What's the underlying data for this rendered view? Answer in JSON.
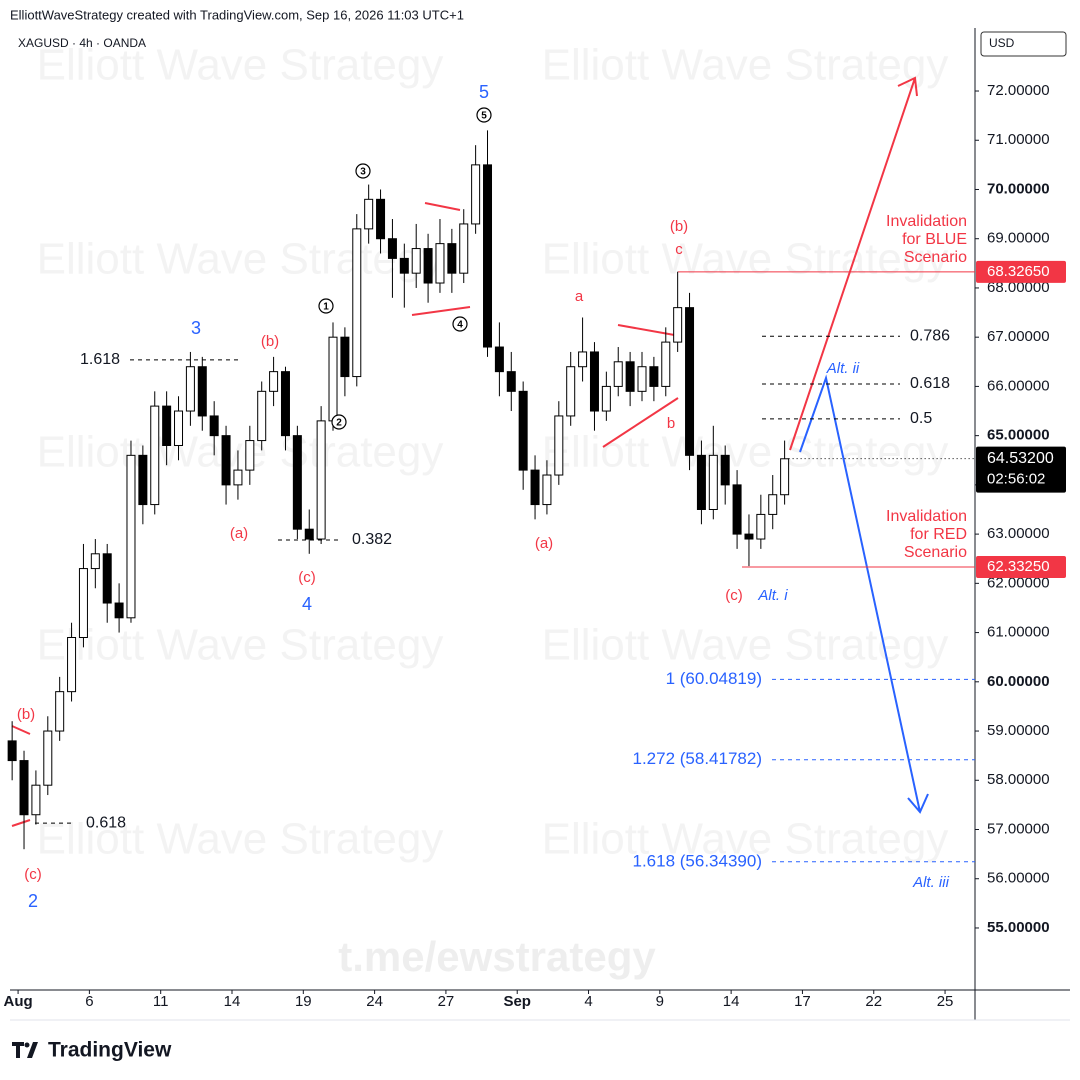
{
  "chart_data": {
    "type": "candlestick",
    "header": "ElliottWaveStrategy created with TradingView.com, Sep 16, 2026 11:03 UTC+1",
    "symbol": "XAGUSD · 4h · OANDA",
    "currency": "USD",
    "watermark": "Elliott Wave Strategy",
    "footer_url": "t.me/ewstrategy",
    "brand": "TradingView",
    "up_color": "#ffffff",
    "down_color": "#000000",
    "x": [
      -0.25,
      0.25,
      0.75,
      1.25,
      1.75,
      2.25,
      2.75,
      3.25,
      3.75,
      4.25,
      4.75,
      5.25,
      5.75,
      6.25,
      6.75,
      7.25,
      7.75,
      8.25,
      8.75,
      9.25,
      9.75,
      10.25,
      10.75,
      11.25,
      11.75,
      12.25,
      12.75,
      13.25,
      13.75,
      14.25,
      14.75,
      15.25,
      15.75,
      16.25,
      16.75,
      17.25,
      17.75,
      18.25,
      18.75,
      19.25,
      19.75,
      20.25,
      20.75,
      21.25,
      21.75,
      22.25,
      22.75,
      23.25,
      23.75,
      24.25,
      24.75,
      25.25,
      25.75,
      26.25,
      26.75,
      27.25,
      27.75,
      28.25,
      28.75,
      29.25,
      29.75,
      30.25,
      30.75,
      31.25,
      31.75,
      32.25
    ],
    "open": [
      58.8,
      58.4,
      57.3,
      57.9,
      59.0,
      59.8,
      60.9,
      62.3,
      62.6,
      61.6,
      61.3,
      64.6,
      63.6,
      65.6,
      64.8,
      65.5,
      66.4,
      65.4,
      65.0,
      64.0,
      64.3,
      64.9,
      65.9,
      66.3,
      65.0,
      63.1,
      62.9,
      65.3,
      67.0,
      66.2,
      69.2,
      69.8,
      69.0,
      68.6,
      68.3,
      68.8,
      68.1,
      68.9,
      68.3,
      69.3,
      70.5,
      66.8,
      66.3,
      65.9,
      64.3,
      63.6,
      64.2,
      65.4,
      66.4,
      66.7,
      65.5,
      66.0,
      66.5,
      65.9,
      66.4,
      66.0,
      66.9,
      67.6,
      64.6,
      63.5,
      64.6,
      64.0,
      63.0,
      62.9,
      63.4,
      63.8
    ],
    "high": [
      59.2,
      58.6,
      58.2,
      59.3,
      60.1,
      61.2,
      62.8,
      62.9,
      62.8,
      62.0,
      64.9,
      64.8,
      65.9,
      65.9,
      65.8,
      66.7,
      66.6,
      65.7,
      65.2,
      64.7,
      65.2,
      66.1,
      66.6,
      66.4,
      65.2,
      63.5,
      65.6,
      67.3,
      67.2,
      69.5,
      70.1,
      70.0,
      69.4,
      68.9,
      69.3,
      69.1,
      69.4,
      69.2,
      69.6,
      70.9,
      71.2,
      67.3,
      66.7,
      66.1,
      64.6,
      64.5,
      65.7,
      66.7,
      67.4,
      66.9,
      66.3,
      66.8,
      66.7,
      66.7,
      66.6,
      67.2,
      68.33,
      67.9,
      64.9,
      65.2,
      64.8,
      64.3,
      63.4,
      63.8,
      64.2,
      64.9
    ],
    "low": [
      58.0,
      56.6,
      57.1,
      57.7,
      58.8,
      59.6,
      60.7,
      61.9,
      61.2,
      61.0,
      61.2,
      63.2,
      63.4,
      64.4,
      64.5,
      65.2,
      65.1,
      64.6,
      63.6,
      63.7,
      64.0,
      64.7,
      65.6,
      64.7,
      62.9,
      62.6,
      62.8,
      65.1,
      65.8,
      66.0,
      68.9,
      68.7,
      67.8,
      67.6,
      68.0,
      67.7,
      67.9,
      67.9,
      68.1,
      69.1,
      66.6,
      65.8,
      65.5,
      63.9,
      63.3,
      63.4,
      64.0,
      65.2,
      66.1,
      65.1,
      65.3,
      65.8,
      65.6,
      65.7,
      65.7,
      65.8,
      66.7,
      64.3,
      63.2,
      63.3,
      63.6,
      62.7,
      62.35,
      62.7,
      63.1,
      63.6
    ],
    "close": [
      58.4,
      57.3,
      57.9,
      59.0,
      59.8,
      60.9,
      62.3,
      62.6,
      61.6,
      61.3,
      64.6,
      63.6,
      65.6,
      64.8,
      65.5,
      66.4,
      65.4,
      65.0,
      64.0,
      64.3,
      64.9,
      65.9,
      66.3,
      65.0,
      63.1,
      62.9,
      65.3,
      67.0,
      66.2,
      69.2,
      69.8,
      69.0,
      68.6,
      68.3,
      68.8,
      68.1,
      68.9,
      68.3,
      69.3,
      70.5,
      66.8,
      66.3,
      65.9,
      64.3,
      63.6,
      64.2,
      65.4,
      66.4,
      66.7,
      65.5,
      66.0,
      66.5,
      65.9,
      66.4,
      66.0,
      66.9,
      67.6,
      64.6,
      63.5,
      64.6,
      64.0,
      63.0,
      62.9,
      63.4,
      63.8,
      64.53
    ],
    "xlim": [
      -0.34,
      40.26
    ],
    "ylim": [
      53.74,
      73.28
    ],
    "xticks": [
      {
        "value": 0,
        "label": "Aug"
      },
      {
        "value": 3,
        "label": "6"
      },
      {
        "value": 6,
        "label": "11"
      },
      {
        "value": 9,
        "label": "14"
      },
      {
        "value": 12,
        "label": "19"
      },
      {
        "value": 15,
        "label": "24"
      },
      {
        "value": 18,
        "label": "27"
      },
      {
        "value": 21,
        "label": "Sep"
      },
      {
        "value": 24,
        "label": "4"
      },
      {
        "value": 27,
        "label": "9"
      },
      {
        "value": 30,
        "label": "14"
      },
      {
        "value": 33,
        "label": "17"
      },
      {
        "value": 36,
        "label": "22"
      },
      {
        "value": 39,
        "label": "25"
      }
    ],
    "yticks": [
      {
        "value": 55,
        "label": "55.00000"
      },
      {
        "value": 56,
        "label": "56.00000"
      },
      {
        "value": 57,
        "label": "57.00000"
      },
      {
        "value": 58,
        "label": "58.00000"
      },
      {
        "value": 59,
        "label": "59.00000"
      },
      {
        "value": 60,
        "label": "60.00000"
      },
      {
        "value": 61,
        "label": "61.00000"
      },
      {
        "value": 62,
        "label": "62.00000"
      },
      {
        "value": 63,
        "label": "63.00000"
      },
      {
        "value": 64,
        "label": "64.00000"
      },
      {
        "value": 65,
        "label": "65.00000"
      },
      {
        "value": 66,
        "label": "66.00000"
      },
      {
        "value": 67,
        "label": "67.00000"
      },
      {
        "value": 68,
        "label": "68.00000"
      },
      {
        "value": 69,
        "label": "69.00000"
      },
      {
        "value": 70,
        "label": "70.00000"
      },
      {
        "value": 71,
        "label": "71.00000"
      },
      {
        "value": 72,
        "label": "72.00000"
      }
    ],
    "levels": [
      {
        "value": 68.3265,
        "label": "68.32650",
        "color": "#f23645"
      },
      {
        "value": 62.3325,
        "label": "62.33250",
        "color": "#f23645"
      }
    ],
    "last_price": {
      "value": 64.532,
      "label": "64.53200",
      "countdown": "02:56:02"
    },
    "fib_levels": [
      {
        "label": "1.618",
        "value": 66.54
      },
      {
        "label": "0.382",
        "value": 62.88
      },
      {
        "label": "0.618",
        "value": 57.13
      },
      {
        "label": "0.786",
        "value": 67.02
      },
      {
        "label": "0.618",
        "value": 66.05
      },
      {
        "label": "0.5",
        "value": 65.34
      }
    ],
    "targets": [
      {
        "label": "1 (60.04819)",
        "value": 60.04819
      },
      {
        "label": "1.272 (58.41782)",
        "value": 58.41782
      },
      {
        "label": "1.618 (56.34390)",
        "value": 56.3439
      }
    ],
    "target_color": "#2962ff",
    "invalidation": [
      [
        "Invalidation",
        "for BLUE",
        "Scenario"
      ],
      [
        "Invalidation",
        "for RED",
        "Scenario"
      ]
    ],
    "wave_labels": [
      {
        "text": "5",
        "color": "#2962ff"
      },
      {
        "text": "5",
        "color": "#000000",
        "circled": true
      },
      {
        "text": "3",
        "color": "#000000",
        "circled": true
      },
      {
        "text": "1",
        "color": "#000000",
        "circled": true
      },
      {
        "text": "2",
        "color": "#000000",
        "circled": true
      },
      {
        "text": "4",
        "color": "#000000",
        "circled": true
      },
      {
        "text": "3",
        "color": "#2962ff"
      },
      {
        "text": "(b)",
        "color": "#f23645"
      },
      {
        "text": "(a)",
        "color": "#f23645"
      },
      {
        "text": "(c)",
        "color": "#f23645"
      },
      {
        "text": "4",
        "color": "#2962ff"
      },
      {
        "text": "(a)",
        "color": "#f23645"
      },
      {
        "text": "a",
        "color": "#f23645"
      },
      {
        "text": "(b)",
        "color": "#f23645"
      },
      {
        "text": "c",
        "color": "#f23645"
      },
      {
        "text": "b",
        "color": "#f23645"
      },
      {
        "text": "(c)",
        "color": "#f23645"
      },
      {
        "text": "Alt. i",
        "color": "#2962ff",
        "italic": true
      },
      {
        "text": "Alt. ii",
        "color": "#2962ff",
        "italic": true
      },
      {
        "text": "Alt. iii",
        "color": "#2962ff",
        "italic": true
      },
      {
        "text": "(b)",
        "color": "#f23645"
      },
      {
        "text": "(c)",
        "color": "#f23645"
      },
      {
        "text": "2",
        "color": "#2962ff"
      }
    ]
  }
}
